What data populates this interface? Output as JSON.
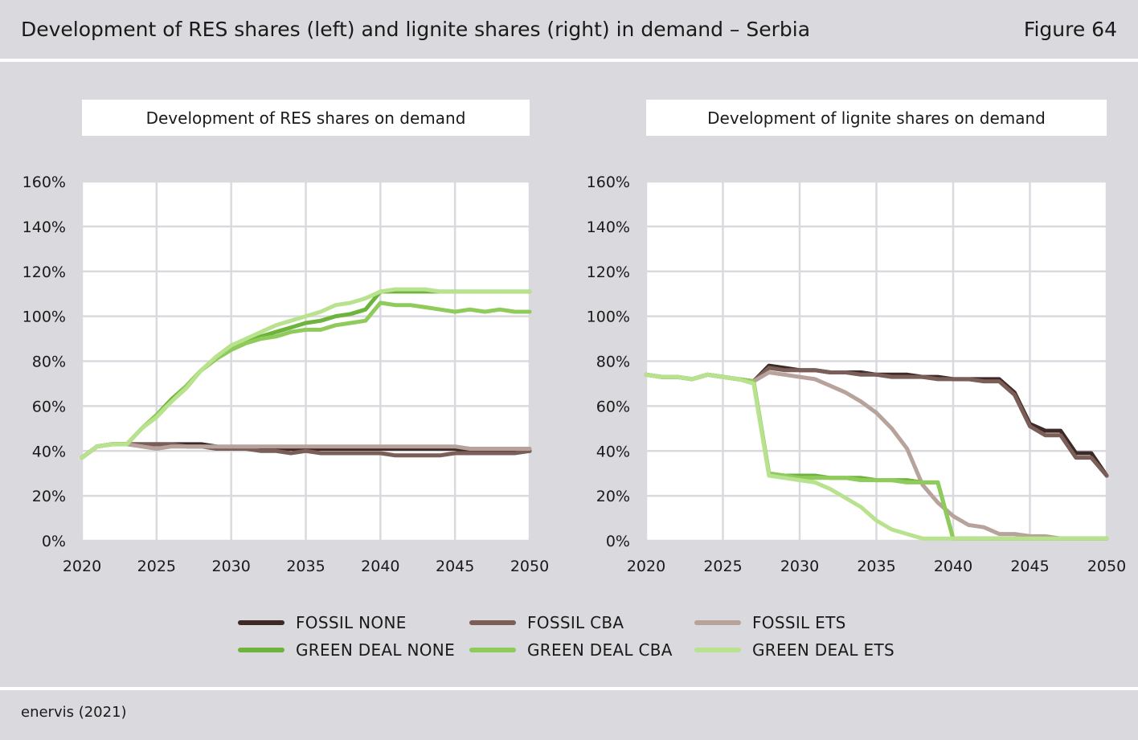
{
  "header": {
    "title": "Development of RES shares (left) and lignite shares (right) in demand – Serbia",
    "figure_label": "Figure 64"
  },
  "footer": {
    "source": "enervis (2021)"
  },
  "series_styles": [
    {
      "name": "FOSSIL NONE",
      "color": "#3d2a27"
    },
    {
      "name": "FOSSIL CBA",
      "color": "#7a5e57"
    },
    {
      "name": "FOSSIL ETS",
      "color": "#b7a39b"
    },
    {
      "name": "GREEN DEAL NONE",
      "color": "#6cb43c"
    },
    {
      "name": "GREEN DEAL CBA",
      "color": "#8fcb5a"
    },
    {
      "name": "GREEN DEAL ETS",
      "color": "#b8e28e"
    }
  ],
  "chart_data": [
    {
      "type": "line",
      "title": "Development of RES shares on demand",
      "xlabel": "",
      "ylabel": "",
      "xlim": [
        2020,
        2050
      ],
      "ylim": [
        0,
        160
      ],
      "xticks": [
        "2020",
        "2025",
        "2030",
        "2035",
        "2040",
        "2045",
        "2050"
      ],
      "yticks": [
        "0%",
        "20%",
        "40%",
        "60%",
        "80%",
        "100%",
        "120%",
        "140%",
        "160%"
      ],
      "grid": true,
      "x": [
        2020,
        2021,
        2022,
        2023,
        2024,
        2025,
        2026,
        2027,
        2028,
        2029,
        2030,
        2031,
        2032,
        2033,
        2034,
        2035,
        2036,
        2037,
        2038,
        2039,
        2040,
        2041,
        2042,
        2043,
        2044,
        2045,
        2046,
        2047,
        2048,
        2049,
        2050
      ],
      "series": [
        {
          "name": "FOSSIL NONE",
          "values": [
            37,
            42,
            43,
            43,
            43,
            43,
            43,
            43,
            43,
            42,
            41,
            41,
            41,
            41,
            41,
            41,
            41,
            41,
            41,
            41,
            41,
            41,
            41,
            41,
            41,
            41,
            40,
            40,
            40,
            40,
            40
          ]
        },
        {
          "name": "FOSSIL CBA",
          "values": [
            37,
            42,
            43,
            43,
            43,
            43,
            43,
            42,
            42,
            41,
            41,
            41,
            40,
            40,
            39,
            40,
            39,
            39,
            39,
            39,
            39,
            38,
            38,
            38,
            38,
            39,
            39,
            39,
            39,
            39,
            40
          ]
        },
        {
          "name": "FOSSIL ETS",
          "values": [
            37,
            42,
            43,
            43,
            42,
            41,
            42,
            42,
            42,
            42,
            42,
            42,
            42,
            42,
            42,
            42,
            42,
            42,
            42,
            42,
            42,
            42,
            42,
            42,
            42,
            42,
            41,
            41,
            41,
            41,
            41
          ]
        },
        {
          "name": "GREEN DEAL NONE",
          "values": [
            37,
            42,
            43,
            43,
            50,
            56,
            63,
            69,
            76,
            81,
            86,
            89,
            91,
            93,
            95,
            97,
            98,
            100,
            101,
            103,
            111,
            111,
            111,
            111,
            111,
            111,
            111,
            111,
            111,
            111,
            111
          ]
        },
        {
          "name": "GREEN DEAL CBA",
          "values": [
            37,
            42,
            43,
            43,
            50,
            56,
            62,
            69,
            76,
            81,
            85,
            88,
            90,
            91,
            93,
            94,
            94,
            96,
            97,
            98,
            106,
            105,
            105,
            104,
            103,
            102,
            103,
            102,
            103,
            102,
            102
          ]
        },
        {
          "name": "GREEN DEAL ETS",
          "values": [
            37,
            42,
            43,
            43,
            50,
            55,
            62,
            68,
            76,
            82,
            87,
            90,
            93,
            96,
            98,
            100,
            102,
            105,
            106,
            108,
            111,
            112,
            112,
            112,
            111,
            111,
            111,
            111,
            111,
            111,
            111
          ]
        }
      ]
    },
    {
      "type": "line",
      "title": "Development of lignite shares on demand",
      "xlabel": "",
      "ylabel": "",
      "xlim": [
        2020,
        2050
      ],
      "ylim": [
        0,
        160
      ],
      "xticks": [
        "2020",
        "2025",
        "2030",
        "2035",
        "2040",
        "2045",
        "2050"
      ],
      "yticks": [
        "0%",
        "20%",
        "40%",
        "60%",
        "80%",
        "100%",
        "120%",
        "140%",
        "160%"
      ],
      "grid": true,
      "x": [
        2020,
        2021,
        2022,
        2023,
        2024,
        2025,
        2026,
        2027,
        2028,
        2029,
        2030,
        2031,
        2032,
        2033,
        2034,
        2035,
        2036,
        2037,
        2038,
        2039,
        2040,
        2041,
        2042,
        2043,
        2044,
        2045,
        2046,
        2047,
        2048,
        2049,
        2050
      ],
      "series": [
        {
          "name": "FOSSIL NONE",
          "values": [
            74,
            73,
            73,
            72,
            74,
            73,
            72,
            71,
            78,
            77,
            76,
            76,
            75,
            75,
            75,
            74,
            74,
            74,
            73,
            73,
            72,
            72,
            72,
            72,
            66,
            52,
            49,
            49,
            39,
            39,
            29
          ]
        },
        {
          "name": "FOSSIL CBA",
          "values": [
            74,
            73,
            73,
            72,
            74,
            73,
            72,
            71,
            77,
            76,
            76,
            76,
            75,
            75,
            74,
            74,
            73,
            73,
            73,
            72,
            72,
            72,
            71,
            71,
            65,
            51,
            47,
            47,
            37,
            37,
            29
          ]
        },
        {
          "name": "FOSSIL ETS",
          "values": [
            74,
            73,
            73,
            72,
            74,
            73,
            72,
            71,
            75,
            74,
            73,
            72,
            69,
            66,
            62,
            57,
            50,
            41,
            25,
            17,
            11,
            7,
            6,
            3,
            3,
            2,
            2,
            1,
            1,
            1,
            1
          ]
        },
        {
          "name": "GREEN DEAL NONE",
          "values": [
            74,
            73,
            73,
            72,
            74,
            73,
            72,
            71,
            30,
            29,
            29,
            29,
            28,
            28,
            28,
            27,
            27,
            27,
            26,
            26,
            1,
            1,
            1,
            1,
            1,
            1,
            1,
            1,
            1,
            1,
            1
          ]
        },
        {
          "name": "GREEN DEAL CBA",
          "values": [
            74,
            73,
            73,
            72,
            74,
            73,
            72,
            71,
            30,
            29,
            28,
            28,
            28,
            28,
            27,
            27,
            27,
            26,
            26,
            26,
            1,
            1,
            1,
            1,
            1,
            1,
            1,
            1,
            1,
            1,
            1
          ]
        },
        {
          "name": "GREEN DEAL ETS",
          "values": [
            74,
            73,
            73,
            72,
            74,
            73,
            72,
            70,
            29,
            28,
            27,
            26,
            23,
            19,
            15,
            9,
            5,
            3,
            1,
            1,
            1,
            1,
            1,
            1,
            1,
            1,
            1,
            1,
            1,
            1,
            1
          ]
        }
      ]
    }
  ]
}
